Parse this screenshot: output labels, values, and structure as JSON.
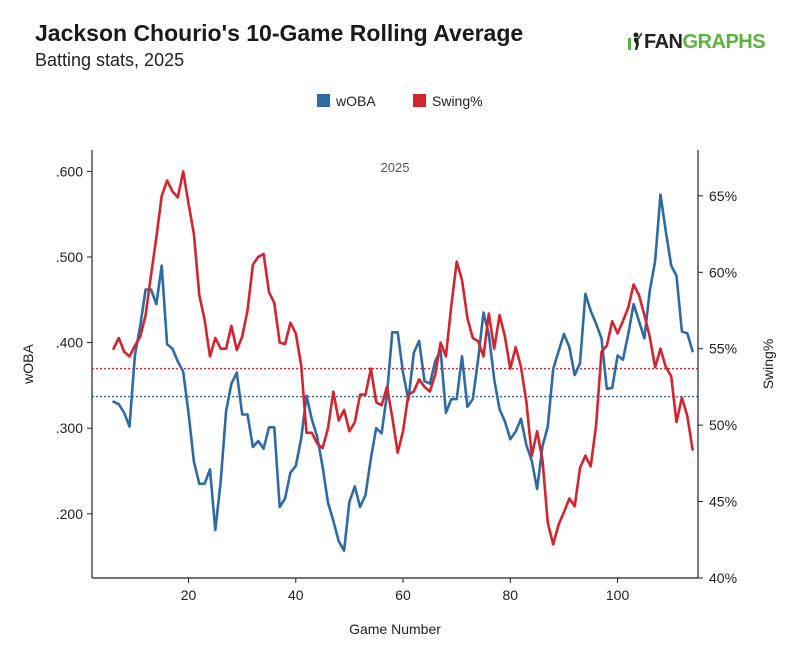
{
  "header": {
    "title": "Jackson Chourio's 10-Game Rolling Average",
    "subtitle": "Batting stats, 2025",
    "logo_fan": "FAN",
    "logo_graphs": "GRAPHS"
  },
  "colors": {
    "woba": "#2e6ba3",
    "swing": "#d3242f",
    "axis": "#222222",
    "logo_green": "#5bb33f"
  },
  "chart_data": {
    "type": "line",
    "title": "Jackson Chourio's 10-Game Rolling Average",
    "subtitle": "Batting stats, 2025",
    "panel_label": "2025",
    "xlabel": "Game Number",
    "ylabel_left": "wOBA",
    "ylabel_right": "Swing%",
    "xlim": [
      2,
      115
    ],
    "ylim_left": [
      0.125,
      0.625
    ],
    "ylim_right": [
      40,
      68
    ],
    "x_ticks": [
      20,
      40,
      60,
      80,
      100
    ],
    "x_tick_labels": [
      "20",
      "40",
      "60",
      "80",
      "100"
    ],
    "y_left_ticks": [
      0.2,
      0.3,
      0.4,
      0.5,
      0.6
    ],
    "y_left_tick_labels": [
      ".200",
      ".300",
      ".400",
      ".500",
      ".600"
    ],
    "y_right_ticks": [
      40,
      45,
      50,
      55,
      60,
      65
    ],
    "y_right_tick_labels": [
      "40%",
      "45%",
      "50%",
      "55%",
      "60%",
      "65%"
    ],
    "legend": [
      "wOBA",
      "Swing%"
    ],
    "legend_position": "top-center",
    "grid": false,
    "x": [
      6,
      7,
      8,
      9,
      10,
      11,
      12,
      13,
      14,
      15,
      16,
      17,
      18,
      19,
      20,
      21,
      22,
      23,
      24,
      25,
      26,
      27,
      28,
      29,
      30,
      31,
      32,
      33,
      34,
      35,
      36,
      37,
      38,
      39,
      40,
      41,
      42,
      43,
      44,
      45,
      46,
      47,
      48,
      49,
      50,
      51,
      52,
      53,
      54,
      55,
      56,
      57,
      58,
      59,
      60,
      61,
      62,
      63,
      64,
      65,
      66,
      67,
      68,
      69,
      70,
      71,
      72,
      73,
      74,
      75,
      76,
      77,
      78,
      79,
      80,
      81,
      82,
      83,
      84,
      85,
      86,
      87,
      88,
      89,
      90,
      91,
      92,
      93,
      94,
      95,
      96,
      97,
      98,
      99,
      100,
      101,
      102,
      103,
      104,
      105,
      106,
      107,
      108,
      109,
      110,
      111,
      112,
      113,
      114
    ],
    "series": [
      {
        "name": "wOBA",
        "axis": "left",
        "reference": 0.337,
        "values": [
          0.331,
          0.328,
          0.318,
          0.302,
          0.385,
          0.42,
          0.462,
          0.462,
          0.445,
          0.49,
          0.398,
          0.393,
          0.378,
          0.366,
          0.318,
          0.261,
          0.235,
          0.235,
          0.252,
          0.181,
          0.238,
          0.32,
          0.352,
          0.365,
          0.316,
          0.316,
          0.278,
          0.285,
          0.276,
          0.301,
          0.301,
          0.208,
          0.218,
          0.248,
          0.256,
          0.288,
          0.338,
          0.31,
          0.29,
          0.255,
          0.213,
          0.192,
          0.168,
          0.157,
          0.214,
          0.232,
          0.208,
          0.222,
          0.265,
          0.3,
          0.294,
          0.34,
          0.412,
          0.412,
          0.365,
          0.333,
          0.388,
          0.402,
          0.355,
          0.352,
          0.378,
          0.391,
          0.318,
          0.334,
          0.334,
          0.384,
          0.325,
          0.334,
          0.38,
          0.435,
          0.41,
          0.357,
          0.322,
          0.308,
          0.287,
          0.296,
          0.311,
          0.28,
          0.262,
          0.229,
          0.279,
          0.302,
          0.369,
          0.39,
          0.41,
          0.395,
          0.362,
          0.376,
          0.457,
          0.437,
          0.422,
          0.405,
          0.346,
          0.347,
          0.385,
          0.38,
          0.41,
          0.445,
          0.425,
          0.405,
          0.46,
          0.495,
          0.573,
          0.53,
          0.49,
          0.478,
          0.413,
          0.411,
          0.39
        ]
      },
      {
        "name": "Swing%",
        "axis": "right",
        "reference": 53.7,
        "values": [
          55.0,
          55.7,
          54.8,
          54.5,
          55.2,
          55.8,
          57.2,
          59.8,
          62.3,
          65.0,
          66.0,
          65.3,
          64.9,
          66.6,
          64.5,
          62.5,
          58.5,
          56.9,
          54.5,
          55.7,
          55.0,
          55.0,
          56.5,
          54.9,
          55.8,
          57.5,
          60.5,
          61.0,
          61.2,
          58.7,
          58.0,
          55.4,
          55.3,
          56.7,
          56.0,
          53.9,
          49.5,
          49.5,
          48.8,
          48.5,
          49.8,
          52.2,
          50.3,
          51.0,
          49.6,
          50.2,
          52.0,
          52.0,
          53.7,
          51.5,
          51.3,
          52.5,
          50.5,
          48.2,
          49.6,
          52.0,
          52.2,
          53.0,
          52.5,
          52.2,
          53.3,
          55.4,
          54.5,
          57.8,
          60.7,
          59.5,
          57.0,
          55.7,
          55.5,
          54.5,
          57.3,
          55.0,
          57.2,
          55.8,
          53.7,
          55.1,
          53.8,
          51.5,
          48.0,
          49.6,
          47.7,
          43.6,
          42.2,
          43.5,
          44.3,
          45.2,
          44.7,
          47.2,
          48.0,
          47.3,
          50.0,
          54.8,
          55.2,
          56.8,
          56.0,
          56.8,
          57.7,
          59.2,
          58.5,
          57.2,
          55.8,
          53.8,
          55.0,
          53.8,
          53.2,
          50.2,
          51.8,
          50.6,
          48.4
        ]
      }
    ]
  }
}
